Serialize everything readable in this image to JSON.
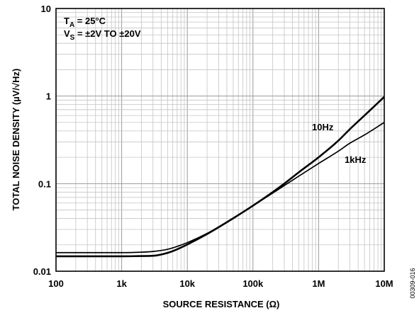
{
  "chart_data": {
    "type": "line",
    "xlabel": "SOURCE RESISTANCE (Ω)",
    "ylabel": "TOTAL NOISE DENSITY (µV/√Hz)",
    "x_scale": "log",
    "y_scale": "log",
    "xlim": [
      100,
      10000000
    ],
    "ylim": [
      0.01,
      10
    ],
    "x_ticks": [
      {
        "value": 100,
        "label": "100"
      },
      {
        "value": 1000,
        "label": "1k"
      },
      {
        "value": 10000,
        "label": "10k"
      },
      {
        "value": 100000,
        "label": "100k"
      },
      {
        "value": 1000000,
        "label": "1M"
      },
      {
        "value": 10000000,
        "label": "10M"
      }
    ],
    "y_ticks": [
      {
        "value": 0.01,
        "label": "0.01"
      },
      {
        "value": 0.1,
        "label": "0.1"
      },
      {
        "value": 1,
        "label": "1"
      },
      {
        "value": 10,
        "label": "10"
      }
    ],
    "grid": true,
    "conditions": [
      "T_A = 25°C",
      "V_S = ±2V TO ±20V"
    ],
    "conditions_text": {
      "ta_main": "T",
      "ta_sub": "A",
      "ta_rest": " = 25°C",
      "vs_main": "V",
      "vs_sub": "S",
      "vs_rest": " = ±2V TO ±20V"
    },
    "series": [
      {
        "name": "10Hz",
        "x": [
          100,
          1000,
          2000,
          3000,
          5000,
          7000,
          10000,
          20000,
          30000,
          50000,
          100000,
          200000,
          300000,
          500000,
          1000000,
          2000000,
          3000000,
          5000000,
          10000000
        ],
        "y": [
          0.0148,
          0.0148,
          0.0149,
          0.015,
          0.0162,
          0.0178,
          0.0202,
          0.0266,
          0.0318,
          0.0402,
          0.056,
          0.08,
          0.1,
          0.135,
          0.2,
          0.31,
          0.42,
          0.6,
          0.98
        ]
      },
      {
        "name": "1kHz",
        "x": [
          100,
          1000,
          2000,
          3000,
          5000,
          7000,
          10000,
          20000,
          30000,
          50000,
          100000,
          200000,
          300000,
          500000,
          1000000,
          2000000,
          3000000,
          5000000,
          10000000
        ],
        "y": [
          0.0163,
          0.0163,
          0.0165,
          0.0168,
          0.0178,
          0.0192,
          0.0212,
          0.027,
          0.032,
          0.0402,
          0.056,
          0.078,
          0.095,
          0.122,
          0.17,
          0.235,
          0.29,
          0.36,
          0.5
        ]
      }
    ],
    "figure_id": "00309-016"
  }
}
